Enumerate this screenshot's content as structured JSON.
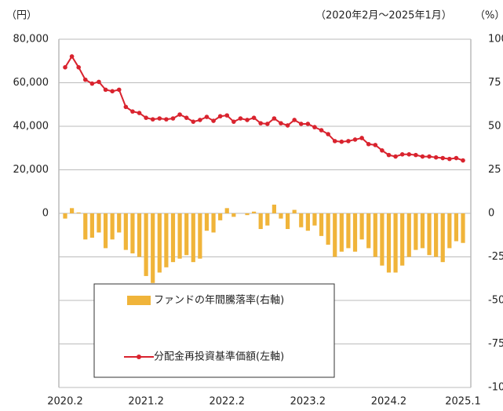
{
  "chart_data": {
    "type": "bar-line",
    "y_unit": "（円）",
    "y2_unit": "（%）",
    "subtitle": "（2020年2月～2025年1月）",
    "categories": [
      "2020.2",
      null,
      null,
      null,
      null,
      null,
      null,
      null,
      null,
      null,
      null,
      null,
      "2021.2",
      null,
      null,
      null,
      null,
      null,
      null,
      null,
      null,
      null,
      null,
      null,
      "2022.2",
      null,
      null,
      null,
      null,
      null,
      null,
      null,
      null,
      null,
      null,
      null,
      "2023.2",
      null,
      null,
      null,
      null,
      null,
      null,
      null,
      null,
      null,
      null,
      null,
      "2024.2",
      null,
      null,
      null,
      null,
      null,
      null,
      null,
      null,
      null,
      null,
      "2025.1"
    ],
    "series": [
      {
        "name": "ファンドの年間騰落率(右軸)",
        "type": "bar",
        "axis": "y2",
        "color": "#f0b43a",
        "values": [
          -3,
          3,
          0.5,
          -15,
          -14,
          -11,
          -20,
          -15,
          -11,
          -21,
          -23,
          -25,
          -36,
          -40,
          -34,
          -31,
          -28,
          -26,
          -24,
          -28,
          -26,
          -10,
          -11,
          -4,
          3,
          -2,
          0,
          -1,
          1,
          -9,
          -7,
          5,
          -3,
          -9,
          2,
          -8,
          -10,
          -7,
          -13,
          -18,
          -25,
          -22,
          -20,
          -22,
          -15,
          -20,
          -25,
          -30,
          -34,
          -34,
          -30,
          -25,
          -21,
          -20,
          -24,
          -25,
          -28,
          -20,
          -16,
          -17
        ]
      },
      {
        "name": "分配金再投資基準価額(左軸)",
        "type": "line",
        "color": "#d9232e",
        "values": [
          67100,
          72100,
          67100,
          61400,
          59600,
          60400,
          56800,
          56100,
          56800,
          48900,
          46800,
          46100,
          43900,
          43200,
          43600,
          43200,
          43600,
          45400,
          43900,
          42100,
          42900,
          44300,
          42500,
          44600,
          45000,
          42100,
          43600,
          42900,
          43900,
          41400,
          41100,
          43600,
          41400,
          40400,
          42900,
          41100,
          41100,
          39600,
          38200,
          36400,
          33200,
          32900,
          33200,
          33900,
          34600,
          31800,
          31400,
          28900,
          26800,
          26100,
          27100,
          27100,
          26800,
          26100,
          26100,
          25700,
          25400,
          25000,
          25400,
          24300
        ]
      }
    ],
    "ylim": [
      -80000,
      80000
    ],
    "yticks": [
      0,
      {
        "value": 20000,
        "label": "20,000"
      },
      {
        "value": 40000,
        "label": "40,000"
      },
      {
        "value": 60000,
        "label": "60,000"
      },
      {
        "value": 80000,
        "label": "80,000"
      }
    ],
    "y2lim": [
      -100,
      100
    ],
    "y2ticks": [
      -100,
      -75,
      -50,
      -25,
      0,
      25,
      50,
      75,
      100
    ],
    "grid": true
  }
}
